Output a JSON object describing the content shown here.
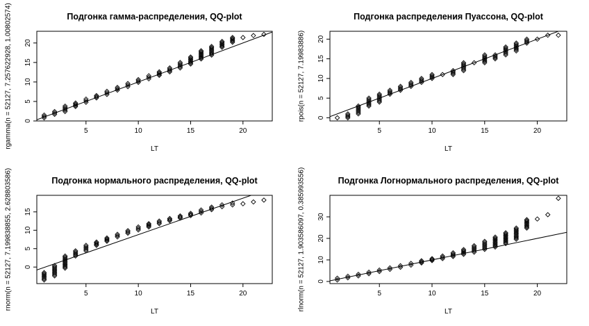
{
  "chart_data": [
    {
      "type": "scatter",
      "title": "Подгонка гамма-распределения, QQ-plot",
      "xlabel": "LT",
      "ylabel": "rgamma(n = 52127, 7.257622928, 1.00802574)",
      "xticks": [
        5,
        10,
        15,
        20
      ],
      "yticks": [
        0,
        5,
        10,
        15,
        20
      ],
      "xlim": [
        0.3,
        22.8
      ],
      "ylim": [
        0,
        23
      ],
      "x": [
        1,
        2,
        3,
        4,
        5,
        6,
        7,
        8,
        9,
        10,
        11,
        12,
        13,
        14,
        15,
        16,
        17,
        18,
        19,
        20,
        21,
        22
      ],
      "y_min": [
        0.8,
        1.7,
        2.4,
        3.7,
        4.8,
        5.9,
        6.8,
        7.9,
        8.8,
        9.9,
        10.8,
        11.7,
        12.6,
        13.6,
        14.6,
        15.9,
        16.9,
        18.9,
        20.2,
        21.4,
        21.9,
        22.2
      ],
      "y_max": [
        1.5,
        2.4,
        3.8,
        4.6,
        5.6,
        6.5,
        7.6,
        8.6,
        9.6,
        10.6,
        11.6,
        12.6,
        13.6,
        15.0,
        16.4,
        18.0,
        19.1,
        20.4,
        21.4,
        21.5,
        21.9,
        22.2
      ],
      "fit_line": [
        [
          0.3,
          0.3
        ],
        [
          22.8,
          22.8
        ]
      ]
    },
    {
      "type": "scatter",
      "title": "Подгонка распределения Пуассона, QQ-plot",
      "xlabel": "LT",
      "ylabel": "rpois(n = 52127, 7.19983886)",
      "xticks": [
        5,
        10,
        15,
        20
      ],
      "yticks": [
        0,
        5,
        10,
        15,
        20
      ],
      "xlim": [
        0.3,
        22.8
      ],
      "ylim": [
        -0.8,
        22
      ],
      "x": [
        1,
        2,
        3,
        4,
        5,
        6,
        7,
        8,
        9,
        10,
        11,
        12,
        13,
        14,
        15,
        16,
        17,
        18,
        19,
        20,
        21,
        22
      ],
      "y_min": [
        0,
        0,
        1,
        3,
        4,
        6,
        7,
        8,
        9,
        10,
        11,
        11,
        12,
        14,
        14,
        15,
        16,
        17,
        19,
        20,
        21,
        21
      ],
      "y_max": [
        0,
        1,
        3,
        5,
        6,
        7,
        8,
        9,
        10,
        11,
        11,
        12,
        14,
        14,
        16,
        16,
        18,
        19,
        20,
        20,
        21,
        21
      ],
      "fit_line": [
        [
          0.3,
          0.3
        ],
        [
          22.8,
          22.8
        ]
      ]
    },
    {
      "type": "scatter",
      "title": "Подгонка нормального распределения, QQ-plot",
      "xlabel": "LT",
      "ylabel": "rnorm(n = 52127, 7.199838855, 2.628803586)",
      "xticks": [
        5,
        10,
        15,
        20
      ],
      "yticks": [
        0,
        5,
        10,
        15
      ],
      "xlim": [
        0.3,
        22.8
      ],
      "ylim": [
        -4.5,
        19.5
      ],
      "x": [
        1,
        2,
        3,
        4,
        5,
        6,
        7,
        8,
        9,
        10,
        11,
        12,
        13,
        14,
        15,
        16,
        17,
        18,
        19,
        20,
        21,
        22
      ],
      "y_min": [
        -3.5,
        -2.4,
        -0.3,
        3.0,
        4.4,
        5.9,
        7.0,
        8.2,
        9.2,
        10.1,
        10.9,
        11.8,
        12.6,
        13.3,
        14.0,
        14.7,
        15.6,
        16.4,
        16.9,
        17.2,
        17.7,
        18.2
      ],
      "y_max": [
        -1.5,
        0.4,
        3.0,
        4.4,
        5.9,
        6.8,
        7.9,
        8.9,
        9.9,
        10.9,
        11.8,
        12.5,
        13.2,
        13.9,
        14.6,
        15.5,
        16.3,
        16.9,
        17.4,
        17.2,
        17.7,
        18.2
      ],
      "fit_line": [
        [
          0.3,
          -0.8
        ],
        [
          22.8,
          21.5
        ]
      ]
    },
    {
      "type": "scatter",
      "title": "Подгонка Логнормального распределения, QQ-plot",
      "xlabel": "LT",
      "ylabel": "rlnorm(n = 52127, 1.903586097, 0.385993556)",
      "xticks": [
        5,
        10,
        15,
        20
      ],
      "yticks": [
        0,
        10,
        20,
        30
      ],
      "xlim": [
        0.3,
        22.8
      ],
      "ylim": [
        -1,
        40
      ],
      "x": [
        1,
        2,
        3,
        4,
        5,
        6,
        7,
        8,
        9,
        10,
        11,
        12,
        13,
        14,
        15,
        16,
        17,
        18,
        19,
        20,
        21,
        22
      ],
      "y_min": [
        0.7,
        1.7,
        2.6,
        3.6,
        4.6,
        5.6,
        6.6,
        7.6,
        8.6,
        9.7,
        10.6,
        11.6,
        12.6,
        13.6,
        14.9,
        16.0,
        17.6,
        19.6,
        24.8,
        29.0,
        31.0,
        38.6
      ],
      "y_max": [
        1.5,
        2.4,
        3.3,
        4.3,
        5.3,
        6.3,
        7.3,
        8.4,
        9.6,
        10.6,
        11.8,
        13.3,
        14.8,
        16.6,
        18.6,
        20.6,
        22.6,
        24.8,
        28.7,
        29.0,
        31.0,
        38.6
      ],
      "fit_line": [
        [
          0.3,
          0.3
        ],
        [
          22.8,
          22.8
        ]
      ]
    }
  ]
}
